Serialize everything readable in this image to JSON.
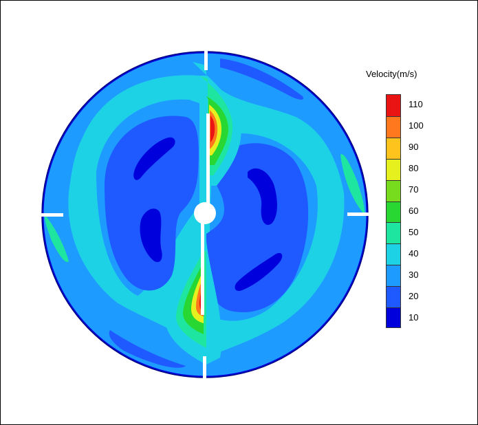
{
  "chart_data": {
    "type": "heatmap",
    "title": "",
    "colorbar": {
      "title": "Velocity(m/s)",
      "levels": [
        {
          "value": 10,
          "color": "#0000dc"
        },
        {
          "value": 20,
          "color": "#1e5aff"
        },
        {
          "value": 30,
          "color": "#1e9bff"
        },
        {
          "value": 40,
          "color": "#1ed2e6"
        },
        {
          "value": 50,
          "color": "#1ee6a0"
        },
        {
          "value": 60,
          "color": "#28d732"
        },
        {
          "value": 70,
          "color": "#78dc1e"
        },
        {
          "value": 80,
          "color": "#e6f01e"
        },
        {
          "value": 90,
          "color": "#ffc31e"
        },
        {
          "value": 100,
          "color": "#ff781e"
        },
        {
          "value": 110,
          "color": "#eb1414"
        }
      ],
      "tick_labels": [
        "10",
        "20",
        "30",
        "40",
        "50",
        "60",
        "70",
        "80",
        "90",
        "100",
        "110"
      ],
      "range": [
        5,
        115
      ]
    },
    "field": {
      "shape": "circular cross-section",
      "dominant_range": "20-40",
      "vortex_cores": "10",
      "peak_near_central_baffles": "110",
      "baffles": [
        "top",
        "bottom",
        "left",
        "right"
      ],
      "central_hub": true
    }
  }
}
